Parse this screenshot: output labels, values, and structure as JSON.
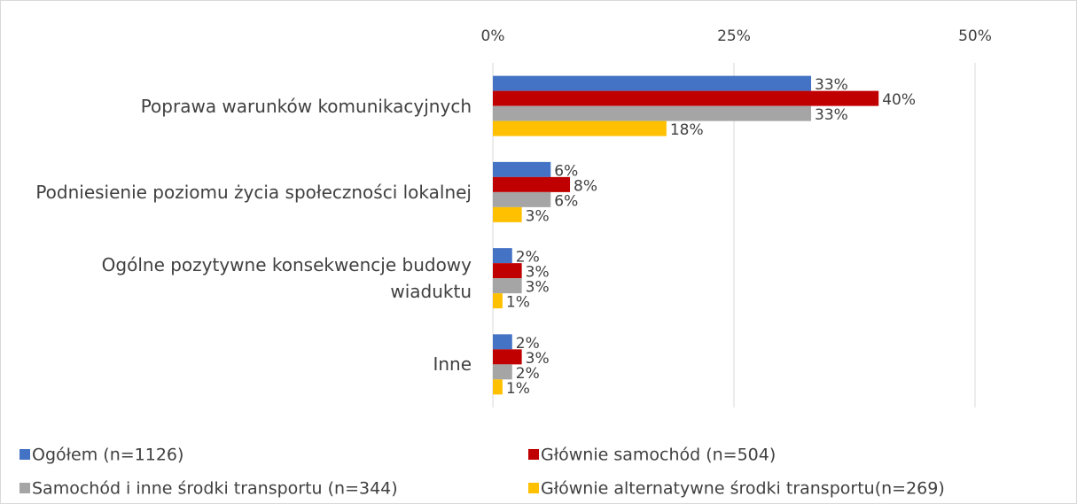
{
  "chart_data": {
    "type": "bar",
    "orientation": "horizontal",
    "categories": [
      "Poprawa warunków komunikacyjnych",
      "Podniesienie poziomu życia społeczności lokalnej",
      "Ogólne pozytywne konsekwencje budowy wiaduktu",
      "Inne"
    ],
    "series": [
      {
        "name": "Ogółem (n=1126)",
        "color": "#4472c4",
        "values": [
          33,
          6,
          2,
          2
        ],
        "value_labels": [
          "33%",
          "6%",
          "2%",
          "2%"
        ]
      },
      {
        "name": "Głównie samochód (n=504)",
        "color": "#c00000",
        "values": [
          40,
          8,
          3,
          3
        ],
        "value_labels": [
          "40%",
          "8%",
          "3%",
          "3%"
        ]
      },
      {
        "name": "Samochód i inne środki transportu (n=344)",
        "color": "#a5a5a5",
        "values": [
          33,
          6,
          3,
          2
        ],
        "value_labels": [
          "33%",
          "6%",
          "3%",
          "2%"
        ]
      },
      {
        "name": "Głównie alternatywne środki transportu(n=269)",
        "color": "#ffc000",
        "values": [
          18,
          3,
          1,
          1
        ],
        "value_labels": [
          "18%",
          "3%",
          "1%",
          "1%"
        ]
      }
    ],
    "xlim": [
      0,
      50
    ],
    "xticks": [
      {
        "value": 0,
        "label": "0%"
      },
      {
        "value": 25,
        "label": "25%"
      },
      {
        "value": 50,
        "label": "50%"
      }
    ],
    "grid": true,
    "legend": "bottom"
  }
}
